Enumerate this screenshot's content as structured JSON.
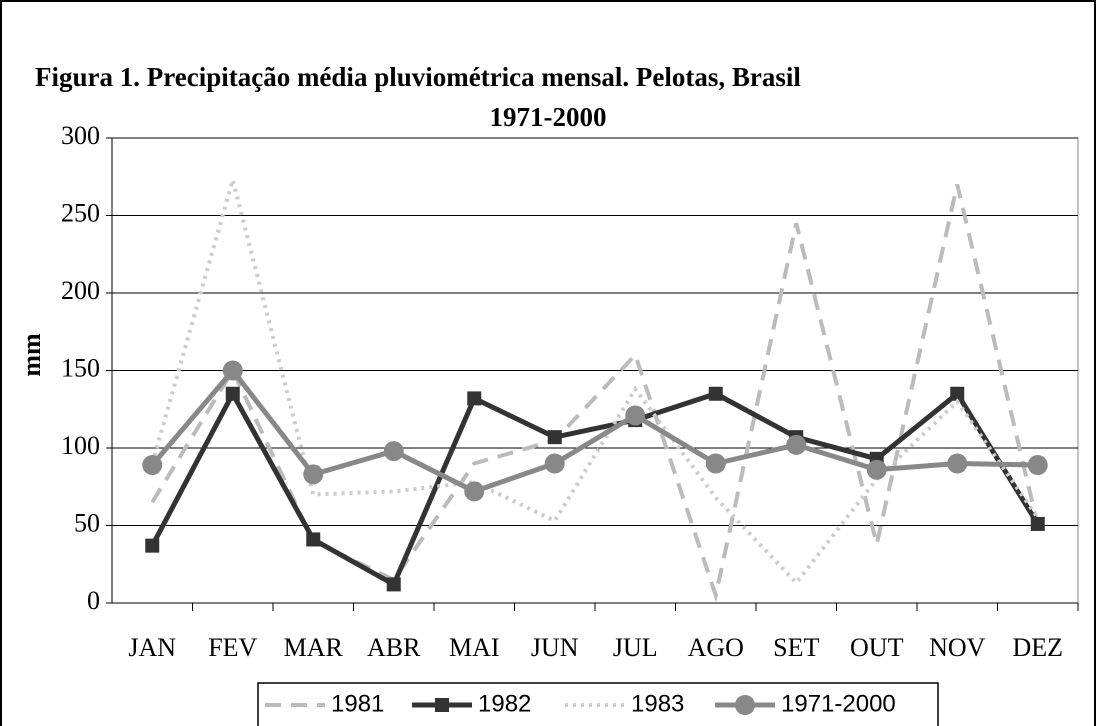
{
  "chart_data": {
    "type": "line",
    "title": "Figura 1. Precipitação média pluviométrica mensal. Pelotas, Brasil",
    "subtitle": "1971-2000",
    "y_label": "mm",
    "categories": [
      "JAN",
      "FEV",
      "MAR",
      "ABR",
      "MAI",
      "JUN",
      "JUL",
      "AGO",
      "SET",
      "OUT",
      "NOV",
      "DEZ"
    ],
    "series": [
      {
        "name": "1981",
        "color": "#bbbbbb",
        "style": "dashed",
        "values": [
          65,
          150,
          40,
          15,
          90,
          105,
          160,
          5,
          245,
          38,
          270,
          50
        ]
      },
      {
        "name": "1982",
        "color": "#333333",
        "style": "solid",
        "marker": "square",
        "values": [
          37,
          135,
          41,
          12,
          132,
          107,
          118,
          135,
          107,
          93,
          135,
          51
        ]
      },
      {
        "name": "1983",
        "color": "#cccccc",
        "style": "dotted",
        "values": [
          90,
          273,
          70,
          72,
          78,
          53,
          138,
          68,
          13,
          80,
          130,
          55
        ]
      },
      {
        "name": "1971-2000",
        "color": "#888888",
        "style": "solid",
        "marker": "circle",
        "values": [
          89,
          150,
          83,
          98,
          72,
          90,
          121,
          90,
          102,
          86,
          90,
          89
        ]
      }
    ],
    "ylim": [
      0,
      300
    ],
    "yticks": [
      0,
      50,
      100,
      150,
      200,
      250,
      300
    ],
    "grid": true,
    "legend": "bottom"
  }
}
